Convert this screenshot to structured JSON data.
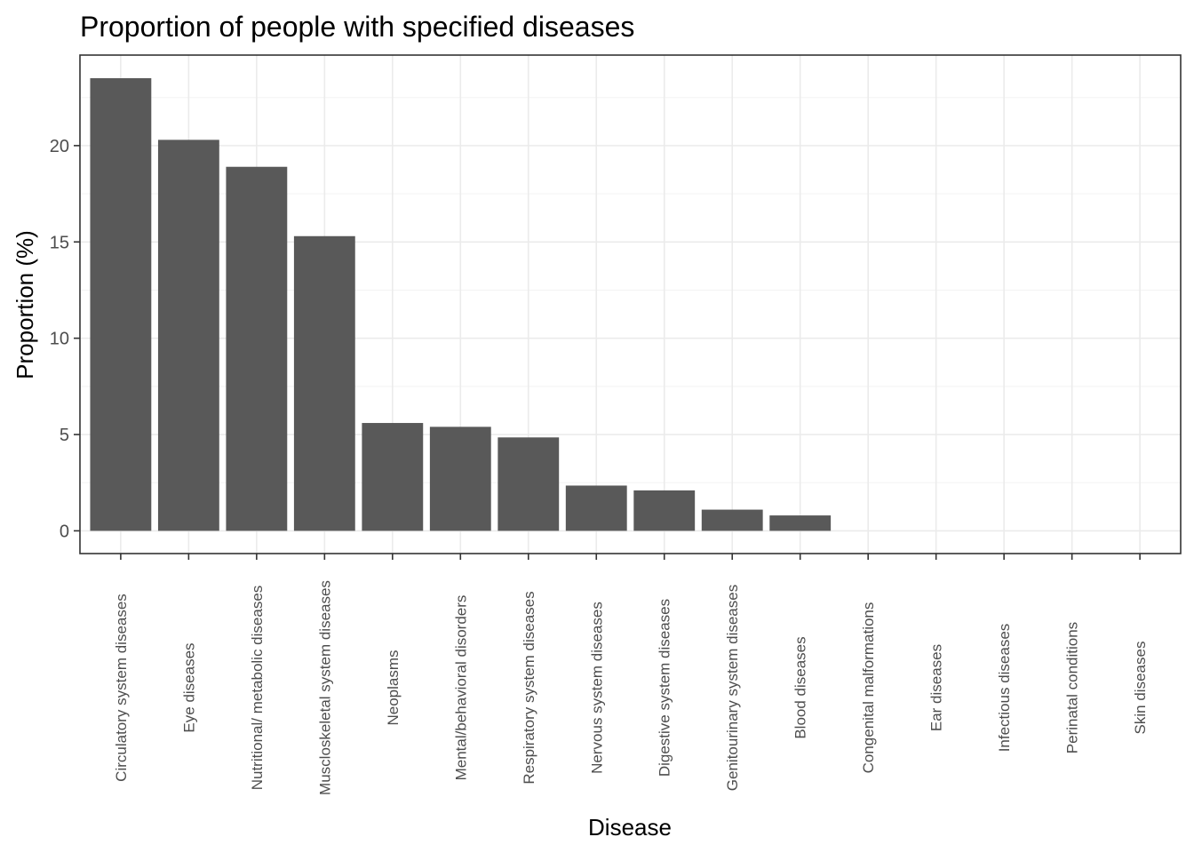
{
  "chart_data": {
    "type": "bar",
    "title": "Proportion of people with specified diseases",
    "xlabel": "Disease",
    "ylabel": "Proportion (%)",
    "categories": [
      "Circulatory system diseases",
      "Eye diseases",
      "Nutritional/ metabolic diseases",
      "Muscloskeletal system diseases",
      "Neoplasms",
      "Mental/behavioral disorders",
      "Respiratory system diseases",
      "Nervous system diseases",
      "Digestive system diseases",
      "Genitourinary system diseases",
      "Blood diseases",
      "Congenital malformations",
      "Ear diseases",
      "Infectious diseases",
      "Perinatal conditions",
      "Skin diseases"
    ],
    "values": [
      23.5,
      20.3,
      18.9,
      15.3,
      5.6,
      5.4,
      4.85,
      2.35,
      2.1,
      1.1,
      0.8,
      0,
      0,
      0,
      0,
      0
    ],
    "yticks": [
      0,
      5,
      10,
      15,
      20
    ],
    "ylim": [
      -1.18,
      24.7
    ],
    "grid": true,
    "legend": "none",
    "bar_color": "#595959"
  }
}
